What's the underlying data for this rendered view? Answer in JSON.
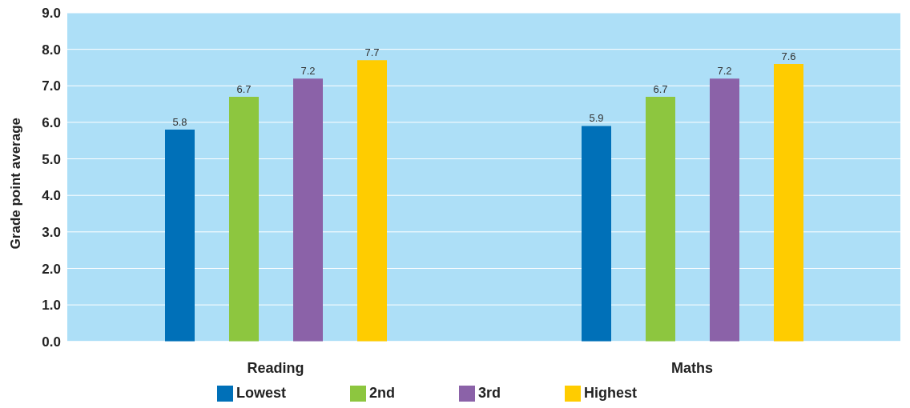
{
  "chart_data": {
    "type": "bar",
    "ylabel": "Grade point average",
    "categories": [
      "Reading",
      "Maths"
    ],
    "series": [
      {
        "name": "Lowest",
        "color": "#0070b8",
        "values": [
          5.8,
          5.9
        ]
      },
      {
        "name": "2nd",
        "color": "#8dc63f",
        "values": [
          6.7,
          6.7
        ]
      },
      {
        "name": "3rd",
        "color": "#8b62a8",
        "values": [
          7.2,
          7.2
        ]
      },
      {
        "name": "Highest",
        "color": "#ffcc00",
        "values": [
          7.7,
          7.6
        ]
      }
    ],
    "ylim": [
      0,
      9
    ],
    "yticks": [
      {
        "value": 0,
        "label": "0.0"
      },
      {
        "value": 1,
        "label": "1.0"
      },
      {
        "value": 2,
        "label": "2.0"
      },
      {
        "value": 3,
        "label": "3.0"
      },
      {
        "value": 4,
        "label": "4.0"
      },
      {
        "value": 5,
        "label": "5.0"
      },
      {
        "value": 6,
        "label": "6.0"
      },
      {
        "value": 7,
        "label": "7.0"
      },
      {
        "value": 8,
        "label": "8.0"
      },
      {
        "value": 9,
        "label": "9.0"
      }
    ],
    "grid": "y",
    "legend": "bottom",
    "data_labels": true
  }
}
